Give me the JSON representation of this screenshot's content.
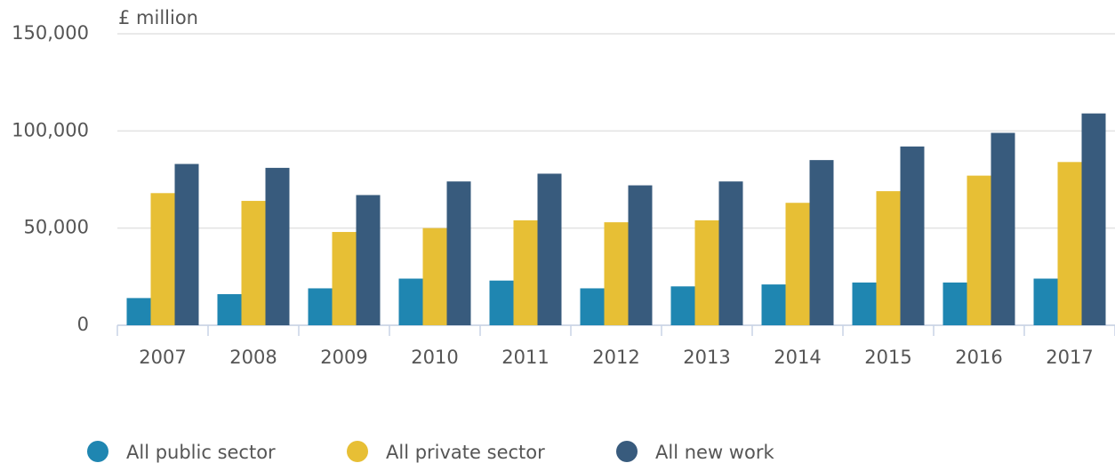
{
  "chart_data": {
    "type": "bar",
    "y_axis_label": "£ million",
    "categories": [
      "2007",
      "2008",
      "2009",
      "2010",
      "2011",
      "2012",
      "2013",
      "2014",
      "2015",
      "2016",
      "2017"
    ],
    "series": [
      {
        "name": "All public sector",
        "color": "#1f86b1",
        "values": [
          14000,
          16000,
          19000,
          24000,
          23000,
          19000,
          20000,
          21000,
          22000,
          22000,
          24000
        ]
      },
      {
        "name": "All private sector",
        "color": "#e7bf35",
        "values": [
          68000,
          64000,
          48000,
          50000,
          54000,
          53000,
          54000,
          63000,
          69000,
          77000,
          84000
        ]
      },
      {
        "name": "All new work",
        "color": "#385b7d",
        "values": [
          83000,
          81000,
          67000,
          74000,
          78000,
          72000,
          74000,
          85000,
          92000,
          99000,
          109000
        ]
      }
    ],
    "ylim": [
      0,
      150000
    ],
    "yticks": [
      0,
      {
        "value": 50000,
        "label": "50,000"
      },
      {
        "value": 100000,
        "label": "100,000"
      },
      {
        "value": 150000,
        "label": "150,000"
      }
    ],
    "grid": true,
    "legend": "bottom-left"
  }
}
